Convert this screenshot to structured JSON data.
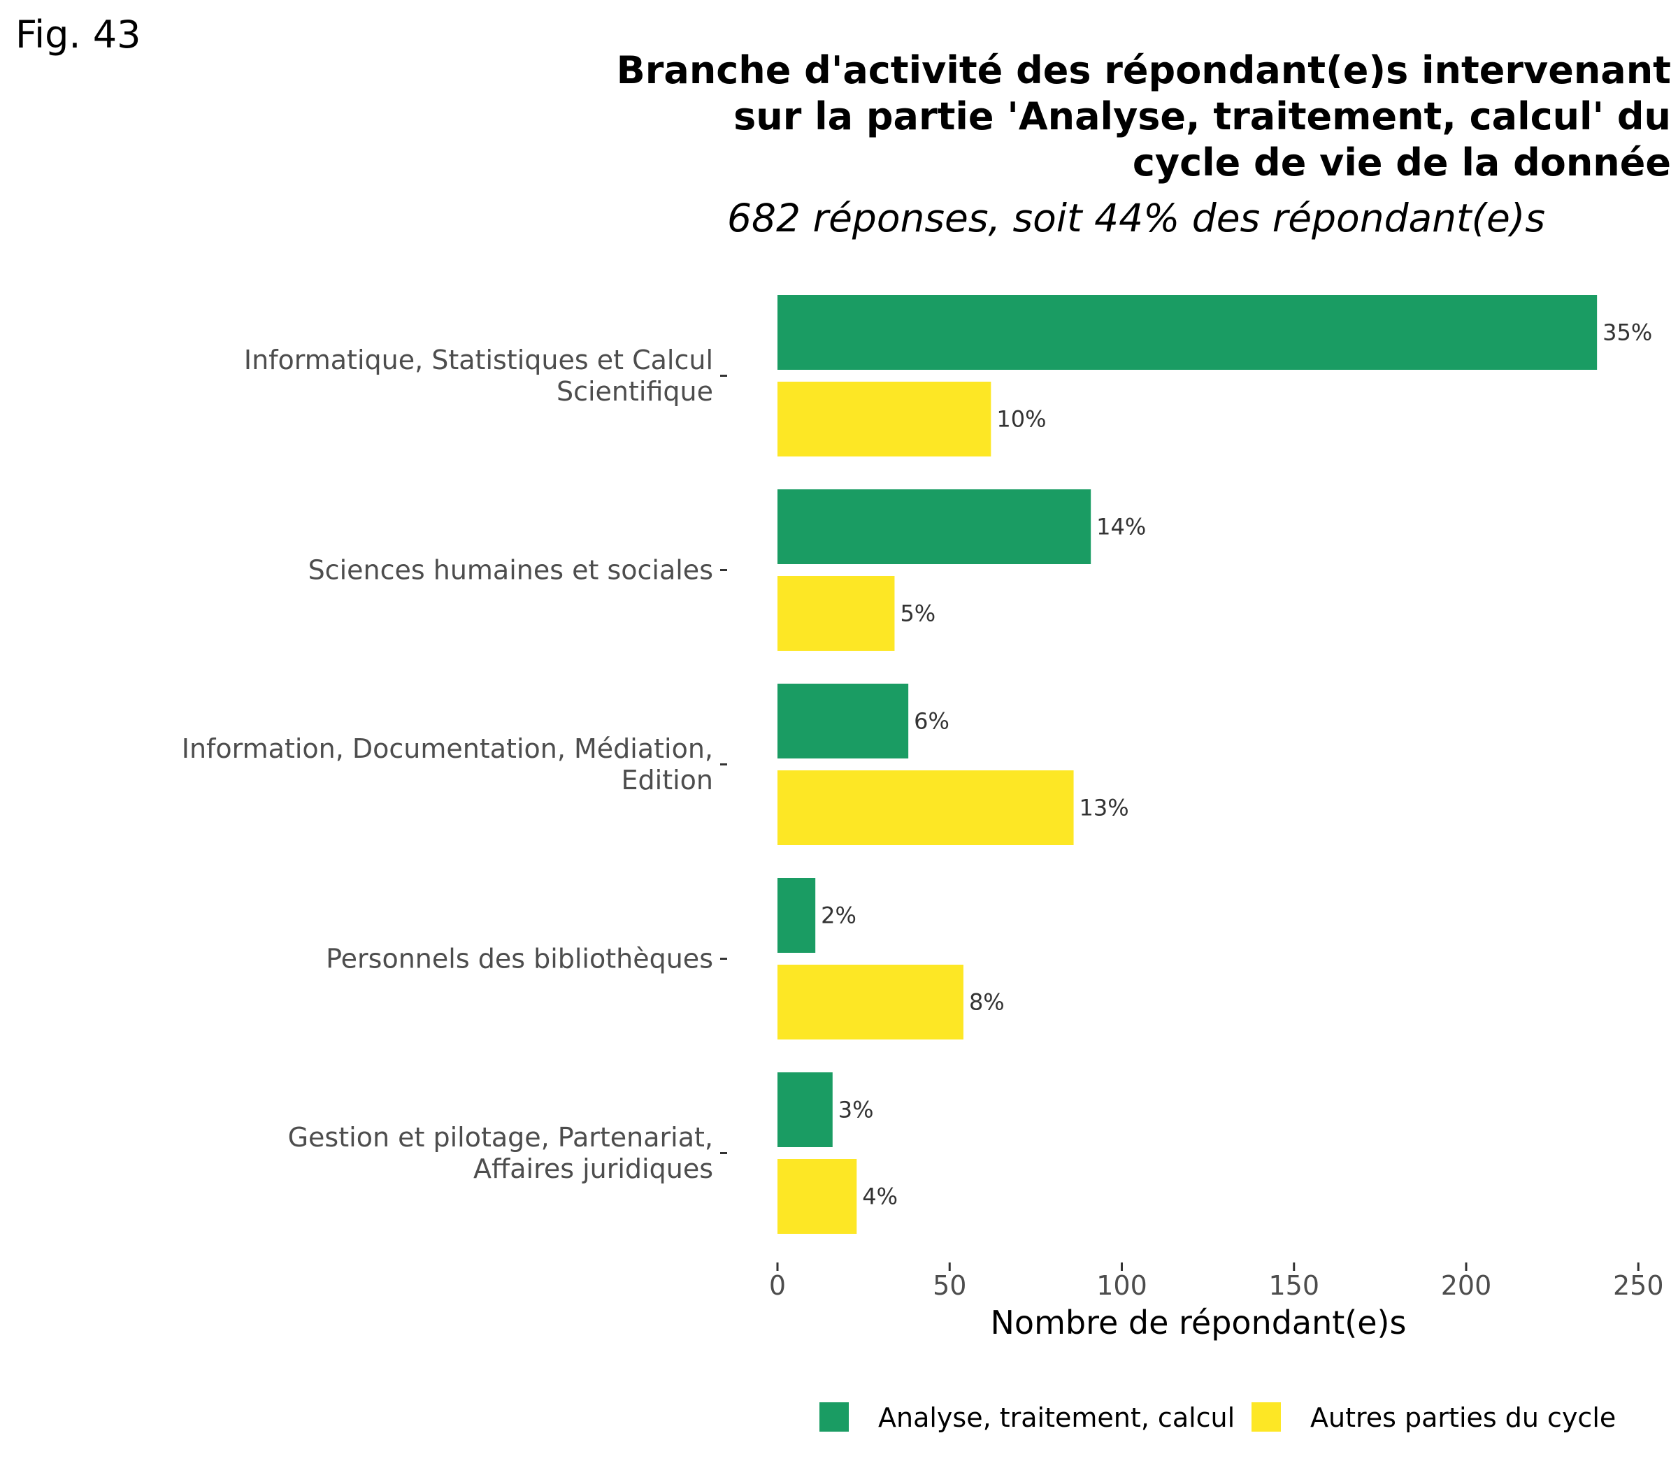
{
  "figure_label": "Fig. 43",
  "chart_data": {
    "type": "bar",
    "orientation": "horizontal",
    "title": "Branche d'activité des répondant(e)s intervenant\nsur la partie 'Analyse, traitement, calcul' du\ncycle de vie de la donnée",
    "subtitle": "682 réponses, soit 44% des répondant(e)s",
    "xlabel": "Nombre de répondant(e)s",
    "ylabel": "",
    "xlim": [
      0,
      250
    ],
    "xticks": [
      "0",
      "50",
      "100",
      "150",
      "200",
      "250"
    ],
    "grid": false,
    "legend_position": "bottom",
    "categories": [
      [
        "Informatique, Statistiques et Calcul",
        "Scientifique"
      ],
      [
        "Sciences humaines et sociales"
      ],
      [
        "Information, Documentation, Médiation,",
        "Edition"
      ],
      [
        "Personnels des bibliothèques"
      ],
      [
        "Gestion et pilotage, Partenariat,",
        "Affaires juridiques"
      ]
    ],
    "series": [
      {
        "name": "Analyse, traitement, calcul",
        "color": "#1a9c63",
        "values": [
          238,
          91,
          38,
          11,
          16
        ],
        "labels": [
          "35%",
          "14%",
          "6%",
          "2%",
          "3%"
        ]
      },
      {
        "name": "Autres parties du cycle",
        "color": "#fde725",
        "values": [
          62,
          34,
          86,
          54,
          23
        ],
        "labels": [
          "10%",
          "5%",
          "13%",
          "8%",
          "4%"
        ]
      }
    ]
  }
}
